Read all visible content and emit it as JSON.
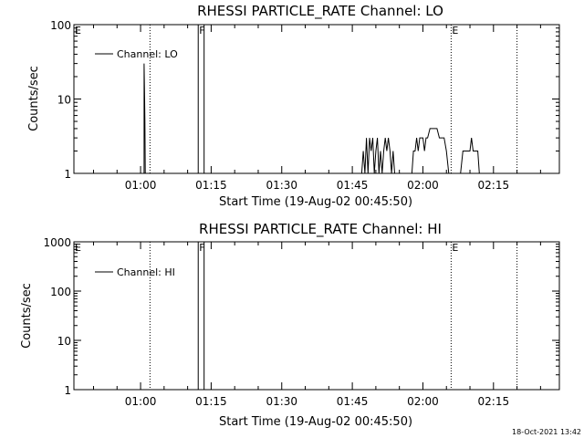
{
  "timestamp": "18-Oct-2021 13:42",
  "chart_data": [
    {
      "type": "line",
      "title": "RHESSI PARTICLE_RATE Channel: LO",
      "xlabel": "Start Time (19-Aug-02 00:45:50)",
      "ylabel": "Counts/sec",
      "xlim": [
        "00:45:50",
        "02:29:00"
      ],
      "ylim": [
        1,
        100
      ],
      "yscale": "log",
      "grid": false,
      "legend": {
        "position": "top-left",
        "entries": [
          "Channel: LO"
        ]
      },
      "x_ticks": [
        "01:00",
        "01:15",
        "01:30",
        "01:45",
        "02:00",
        "02:15"
      ],
      "y_ticks": [
        "1",
        "10",
        "100"
      ],
      "markers": [
        {
          "label": "E",
          "time": "00:45:50",
          "style": "none"
        },
        {
          "label": "",
          "time": "01:02:00",
          "style": "dotted"
        },
        {
          "label": "F",
          "time": "01:12:15",
          "style": "solid"
        },
        {
          "label": "",
          "time": "01:13:30",
          "style": "solid"
        },
        {
          "label": "E",
          "time": "02:06:00",
          "style": "dotted"
        },
        {
          "label": "",
          "time": "02:20:00",
          "style": "dotted"
        }
      ],
      "series": [
        {
          "name": "Channel: LO",
          "x": [
            "01:00:45",
            "01:00:45",
            "01:00:50",
            "01:00:55",
            "01:01:00",
            "01:01:00",
            "01:47:00",
            "01:47:20",
            "01:47:40",
            "01:48:00",
            "01:48:20",
            "01:48:40",
            "01:49:00",
            "01:49:20",
            "01:49:40",
            "01:50:00",
            "01:50:20",
            "01:50:40",
            "01:51:00",
            "01:51:20",
            "01:51:40",
            "01:52:00",
            "01:52:20",
            "01:52:40",
            "01:53:00",
            "01:53:20",
            "01:53:40",
            "01:54:00",
            "01:54:30",
            "01:57:40",
            "01:58:00",
            "01:58:20",
            "01:58:40",
            "01:59:00",
            "01:59:20",
            "01:59:40",
            "02:00:00",
            "02:00:20",
            "02:00:40",
            "02:01:00",
            "02:01:30",
            "02:02:00",
            "02:02:30",
            "02:03:00",
            "02:03:30",
            "02:04:00",
            "02:04:30",
            "02:05:00",
            "02:05:30",
            "02:06:00",
            "02:08:00",
            "02:08:30",
            "02:09:00",
            "02:09:30",
            "02:10:00",
            "02:10:20",
            "02:10:40",
            "02:11:00",
            "02:11:20",
            "02:11:40",
            "02:12:00",
            "02:13:00",
            "02:14:00"
          ],
          "y": [
            1,
            30,
            12,
            5,
            1,
            1,
            1,
            2,
            1,
            3,
            1,
            3,
            2,
            3,
            1,
            2,
            3,
            1,
            2,
            1,
            2,
            3,
            2,
            3,
            2,
            1,
            2,
            1,
            1,
            1,
            2,
            2,
            3,
            2,
            3,
            3,
            3,
            2,
            3,
            3,
            4,
            4,
            4,
            4,
            3,
            3,
            3,
            2,
            1,
            1,
            1,
            2,
            2,
            2,
            2,
            3,
            2,
            2,
            2,
            2,
            1,
            1,
            1
          ]
        }
      ]
    },
    {
      "type": "line",
      "title": "RHESSI PARTICLE_RATE Channel: HI",
      "xlabel": "Start Time (19-Aug-02 00:45:50)",
      "ylabel": "Counts/sec",
      "xlim": [
        "00:45:50",
        "02:29:00"
      ],
      "ylim": [
        1,
        1000
      ],
      "yscale": "log",
      "grid": false,
      "legend": {
        "position": "top-left",
        "entries": [
          "Channel: HI"
        ]
      },
      "x_ticks": [
        "01:00",
        "01:15",
        "01:30",
        "01:45",
        "02:00",
        "02:15"
      ],
      "y_ticks": [
        "1",
        "10",
        "100",
        "1000"
      ],
      "markers": [
        {
          "label": "E",
          "time": "00:45:50",
          "style": "none"
        },
        {
          "label": "",
          "time": "01:02:00",
          "style": "dotted"
        },
        {
          "label": "F",
          "time": "01:12:15",
          "style": "solid"
        },
        {
          "label": "",
          "time": "01:13:30",
          "style": "solid"
        },
        {
          "label": "E",
          "time": "02:06:00",
          "style": "dotted"
        },
        {
          "label": "",
          "time": "02:20:00",
          "style": "dotted"
        }
      ],
      "series": [
        {
          "name": "Channel: HI",
          "x": [],
          "y": []
        }
      ]
    }
  ]
}
